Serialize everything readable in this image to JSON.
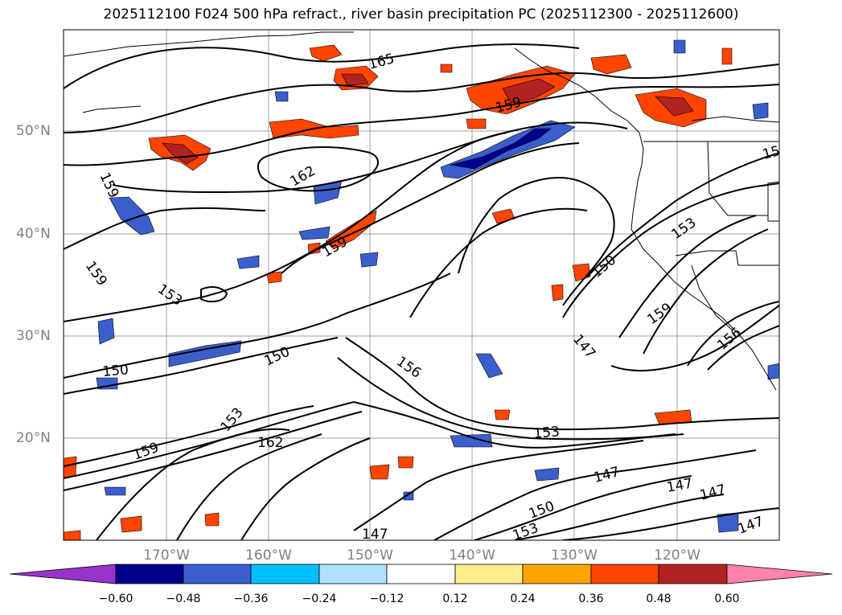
{
  "title": "2025112100 F024 500 hPa refract., river basin precipitation PC (2025112300 - 2025112600)",
  "lat_labels": [
    "50°N",
    "40°N",
    "30°N",
    "20°N"
  ],
  "lon_labels": [
    "170°W",
    "160°W",
    "150°W",
    "140°W",
    "130°W",
    "120°W"
  ],
  "colorbar": {
    "ticks": [
      "−0.60",
      "−0.48",
      "−0.36",
      "−0.24",
      "−0.12",
      "0.12",
      "0.24",
      "0.36",
      "0.48",
      "0.60"
    ],
    "colors": [
      "#9932CC",
      "#00008B",
      "#3A5FCD",
      "#00BFFF",
      "#B0E2FF",
      "#FFFFFF",
      "#FFEC8B",
      "#FFA500",
      "#FF4500",
      "#B22222",
      "#FF82AB"
    ]
  },
  "contour_labels": [
    "165",
    "159",
    "162",
    "159",
    "159",
    "153",
    "150",
    "150",
    "153",
    "162",
    "159",
    "156",
    "153",
    "150",
    "147",
    "153",
    "159",
    "156",
    "147",
    "147",
    "147",
    "150",
    "153",
    "147",
    "147",
    "159",
    "15"
  ],
  "colors": {
    "contour": "#000000",
    "grid": "#a0a0a0",
    "axis_label": "#7f7f7f"
  }
}
